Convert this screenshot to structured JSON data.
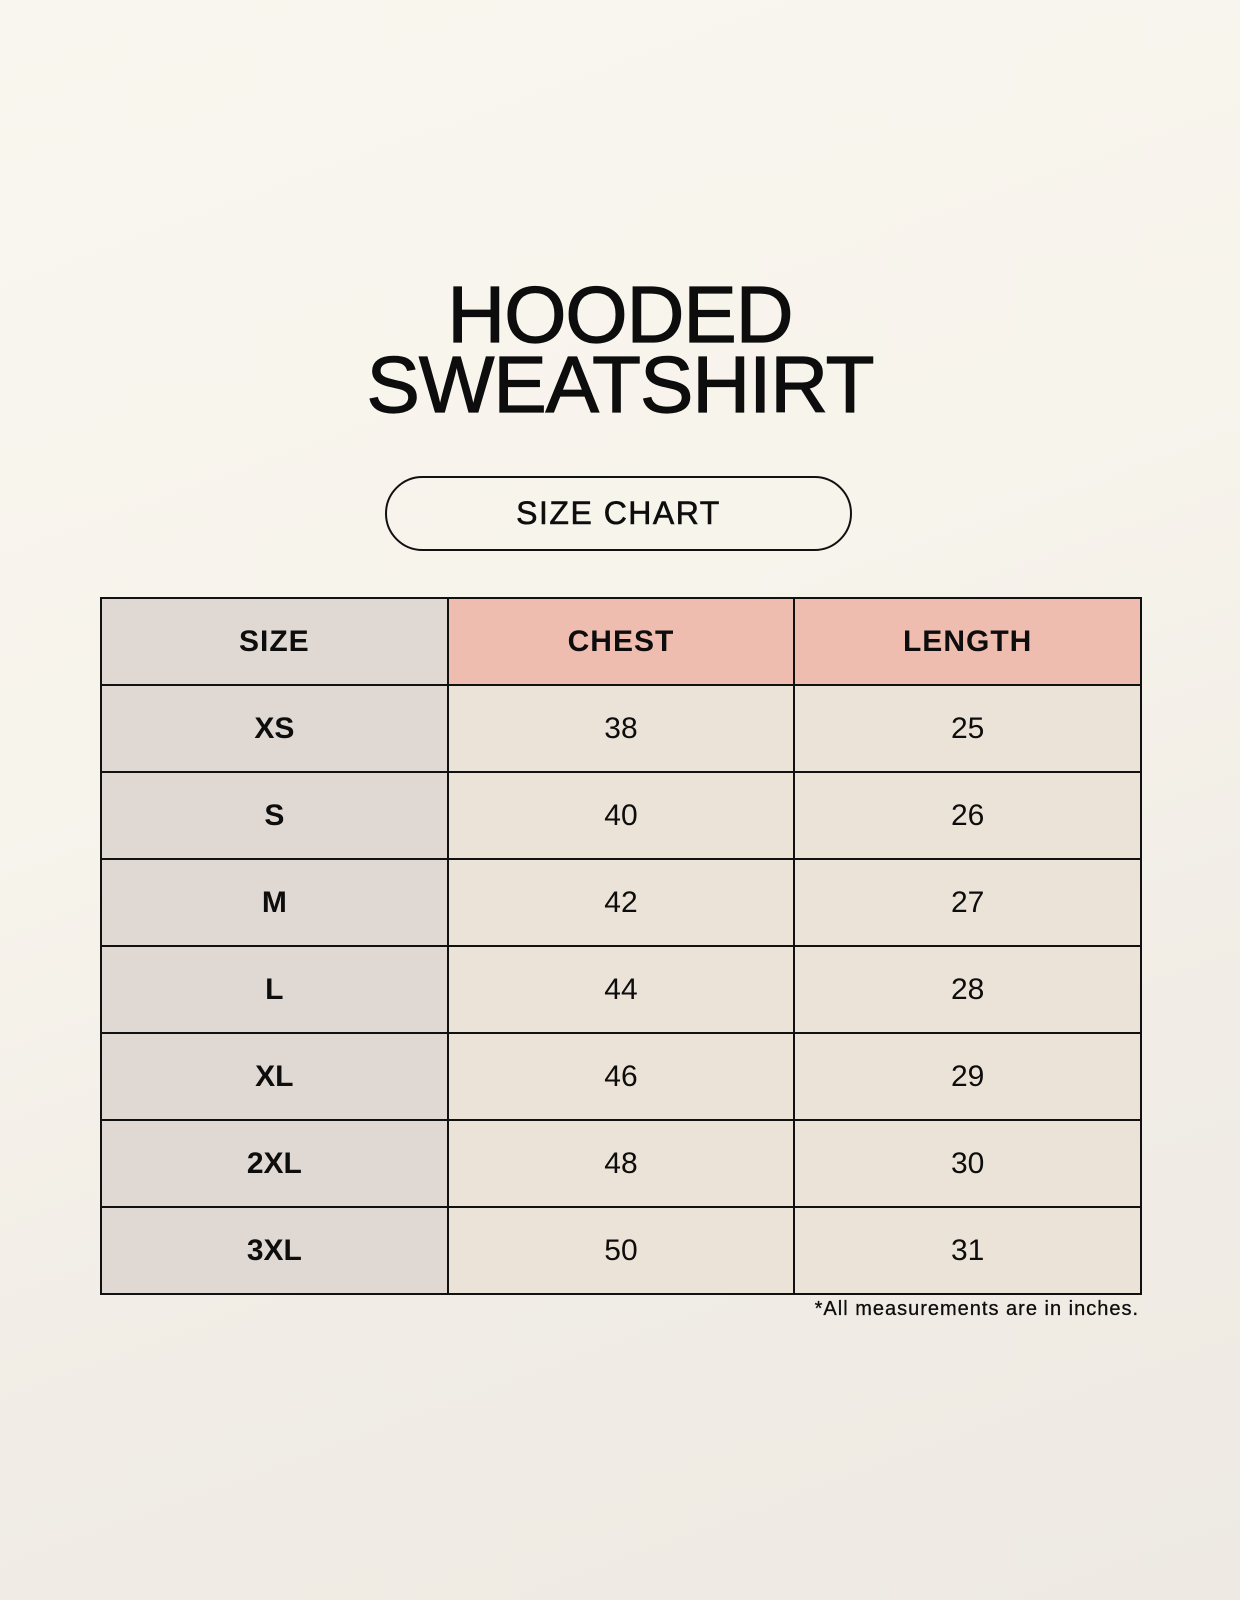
{
  "title": {
    "line1": "HOODED",
    "line2": "SWEATSHIRT"
  },
  "badge": "SIZE CHART",
  "table": {
    "headers": [
      "SIZE",
      "CHEST",
      "LENGTH"
    ],
    "rows": [
      [
        "XS",
        "38",
        "25"
      ],
      [
        "S",
        "40",
        "26"
      ],
      [
        "M",
        "42",
        "27"
      ],
      [
        "L",
        "44",
        "28"
      ],
      [
        "XL",
        "46",
        "29"
      ],
      [
        "2XL",
        "48",
        "30"
      ],
      [
        "3XL",
        "50",
        "31"
      ]
    ]
  },
  "footnote": "*All measurements are in inches.",
  "colors": {
    "header_accent": "#eebdaf",
    "size_column": "#e0d9d3",
    "value_cells": "#ebe3d8",
    "background": "#f9f6ef"
  }
}
